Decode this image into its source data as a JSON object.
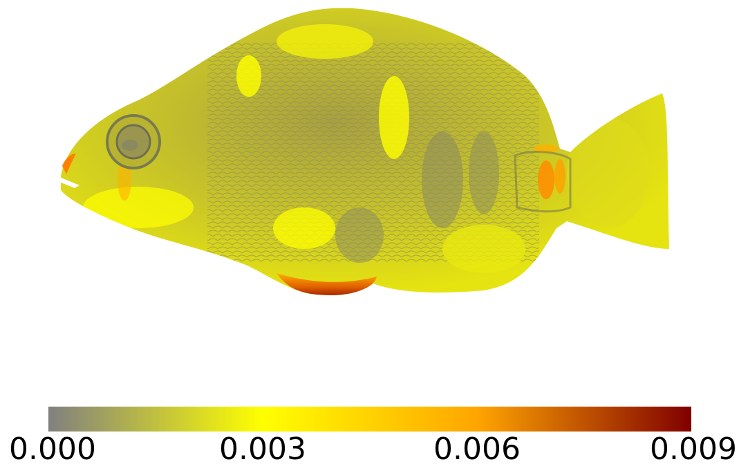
{
  "colorbar": {
    "min": 0.0,
    "max": 0.009,
    "stops": [
      {
        "value": 0.0,
        "color": "#808080"
      },
      {
        "value": 0.003,
        "color": "#ffff00"
      },
      {
        "value": 0.006,
        "color": "#ffa500"
      },
      {
        "value": 0.009,
        "color": "#800000"
      }
    ],
    "ticks": [
      {
        "value": 0.0,
        "label": "0.000"
      },
      {
        "value": 0.003,
        "label": "0.003"
      },
      {
        "value": 0.006,
        "label": "0.006"
      },
      {
        "value": 0.009,
        "label": "0.009"
      }
    ]
  }
}
